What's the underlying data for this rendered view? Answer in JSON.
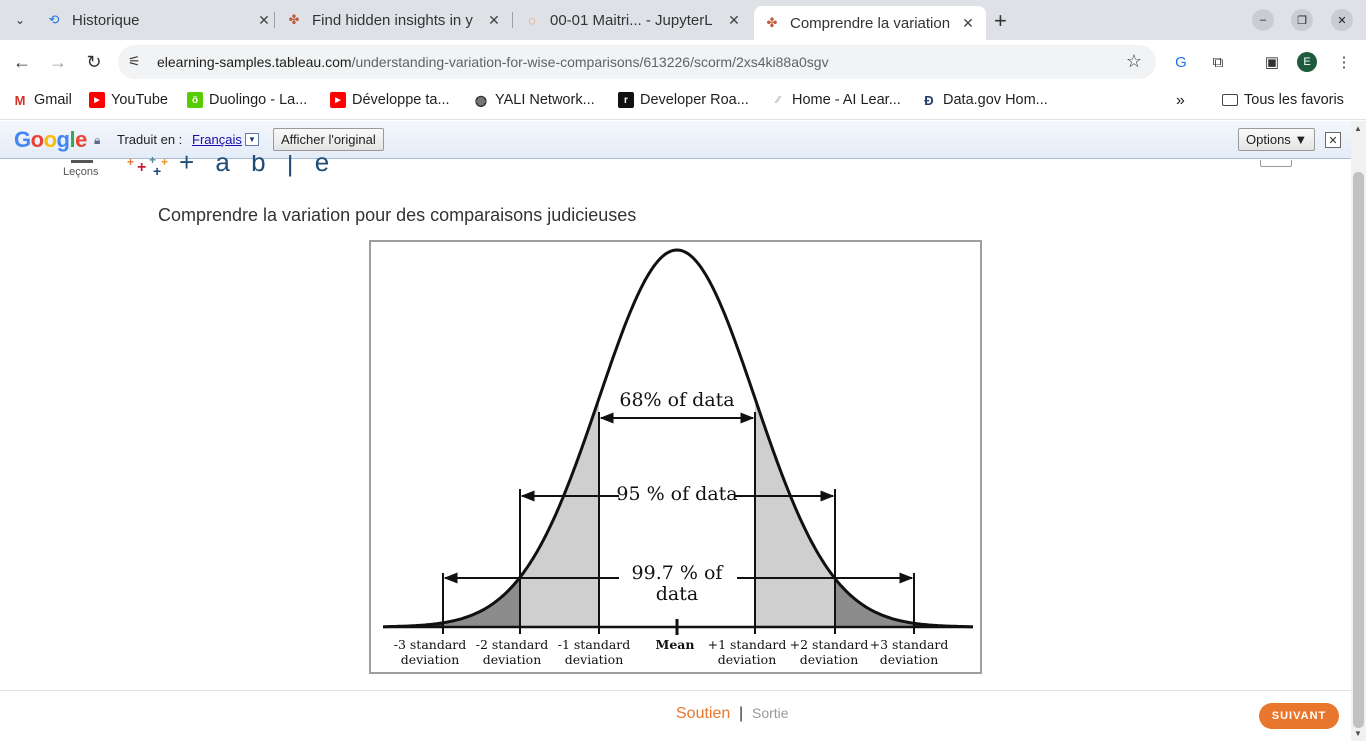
{
  "tabs": [
    {
      "title": "Historique",
      "icon": "history-icon"
    },
    {
      "title": "Find hidden insights in y",
      "icon": "tableau-icon"
    },
    {
      "title": "00-01 Maitri... - JupyterL",
      "icon": "jupyter-icon"
    },
    {
      "title": "Comprendre la variation",
      "icon": "tableau-icon",
      "active": true
    }
  ],
  "address": {
    "host": "elearning-samples.tableau.com",
    "path": "/understanding-variation-for-wise-comparisons/613226/scorm/2xs4ki88a0sgv"
  },
  "profile_initial": "E",
  "bookmarks": [
    {
      "label": "Gmail",
      "icon": "gmail-icon"
    },
    {
      "label": "YouTube",
      "icon": "youtube-icon"
    },
    {
      "label": "Duolingo - La...",
      "icon": "duolingo-icon"
    },
    {
      "label": "Développe ta...",
      "icon": "youtube-icon"
    },
    {
      "label": "YALI Network...",
      "icon": "globe-icon"
    },
    {
      "label": "Developer Roa...",
      "icon": "roadmap-icon"
    },
    {
      "label": "Home - AI Lear...",
      "icon": "ai-icon"
    },
    {
      "label": "Data.gov Hom...",
      "icon": "datagov-icon"
    }
  ],
  "all_bookmarks": "Tous les favoris",
  "translate": {
    "logo": "Google",
    "label": "Traduit en :",
    "language": "Français",
    "show_original": "Afficher l'original",
    "options": "Options ▼"
  },
  "page": {
    "menu_label": "Leçons",
    "logo_text": "+ a b | e a u",
    "lesson_title": "Comprendre la variation pour des comparaisons judicieuses",
    "footer": {
      "support": "Soutien",
      "separator": "|",
      "exit": "Sortie",
      "next": "SUIVANT"
    }
  },
  "figure": {
    "labels": {
      "p68": "68% of data",
      "p95": "95 % of data",
      "p997_line1": "99.7 % of",
      "p997_line2": "data"
    },
    "axis_labels": [
      [
        "-3 standard",
        "deviation"
      ],
      [
        "-2 standard",
        "deviation"
      ],
      [
        "-1 standard",
        "deviation"
      ],
      [
        "Mean",
        ""
      ],
      [
        "+1 standard",
        "deviation"
      ],
      [
        "+2 standard",
        "deviation"
      ],
      [
        "+3 standard",
        "deviation"
      ]
    ]
  }
}
